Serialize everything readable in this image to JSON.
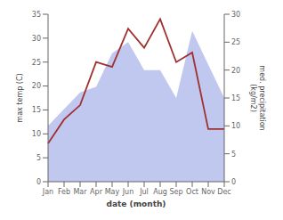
{
  "chart_data": {
    "type": "line",
    "categories": [
      "Jan",
      "Feb",
      "Mar",
      "Apr",
      "May",
      "Jun",
      "Jul",
      "Aug",
      "Sep",
      "Oct",
      "Nov",
      "Dec"
    ],
    "series": [
      {
        "type": "area",
        "axis": "y2",
        "color": "#c0c8f0",
        "values": [
          10,
          13,
          16,
          17,
          23,
          25,
          20,
          20,
          15,
          27,
          21,
          15
        ]
      },
      {
        "type": "line",
        "axis": "y",
        "color": "#a03030",
        "values": [
          8,
          13,
          16,
          25,
          24,
          32,
          28,
          34,
          25,
          27,
          11,
          11
        ]
      }
    ],
    "xlabel": "date (month)",
    "ylabel": "max temp (C)",
    "y2label": "med. precipitation\n(kg/m2)",
    "ylim": [
      0,
      35
    ],
    "yticks": [
      0,
      5,
      10,
      15,
      20,
      25,
      30,
      35
    ],
    "y2lim": [
      0,
      30
    ],
    "y2ticks": [
      0,
      5,
      10,
      15,
      20,
      25,
      30
    ],
    "grid": false
  }
}
